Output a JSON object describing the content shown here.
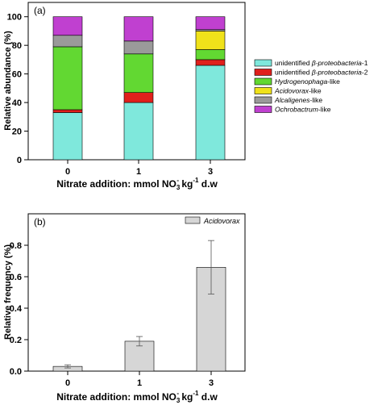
{
  "colors": {
    "cyan": "#7fe8dc",
    "red": "#e0201c",
    "green": "#62d832",
    "yellow": "#f0e21a",
    "gray": "#9a9a9a",
    "magenta": "#c040d0",
    "bar_b": "#d6d6d6"
  },
  "chart_data": [
    {
      "type": "bar",
      "stacked": true,
      "panel_label": "(a)",
      "ylabel": "Relative abundance (%)",
      "xlabel": "Nitrate addition: mmol NO₃⁻ kg⁻¹ d.w",
      "xlabel_parts": {
        "a": "Nitrate addition: mmol NO",
        "sub": "3",
        "sup1": "-",
        "b": " kg",
        "sup2": "-1",
        "c": " d.w"
      },
      "categories": [
        "0",
        "1",
        "3"
      ],
      "ylim": [
        0,
        110
      ],
      "yticks": [
        "0",
        "20",
        "40",
        "60",
        "80",
        "100"
      ],
      "grid": false,
      "legend_position": "right",
      "series": [
        {
          "name": "unidentified β-proteobacteria-1",
          "name_parts": {
            "pre": "unidentified ",
            "it": "β-proteobacteria",
            "post": "-1"
          },
          "color_key": "cyan",
          "values": [
            33,
            40,
            66
          ]
        },
        {
          "name": "unidentified β-proteobacteria-2",
          "name_parts": {
            "pre": "unidentified ",
            "it": "β-proteobacteria",
            "post": "-2"
          },
          "color_key": "red",
          "values": [
            2,
            7,
            4
          ]
        },
        {
          "name": "Hydrogenophaga-like",
          "name_parts": {
            "pre": "",
            "it": "Hydrogenophaga",
            "post": "-like"
          },
          "color_key": "green",
          "values": [
            44,
            27,
            7
          ]
        },
        {
          "name": "Acidovorax-like",
          "name_parts": {
            "pre": "",
            "it": "Acidovorax",
            "post": "-like"
          },
          "color_key": "yellow",
          "values": [
            0,
            0,
            13
          ]
        },
        {
          "name": "Alcaligenes-like",
          "name_parts": {
            "pre": "",
            "it": "Alcaligenes",
            "post": "-like"
          },
          "color_key": "gray",
          "values": [
            8,
            9,
            1
          ]
        },
        {
          "name": "Ochrobactrum-like",
          "name_parts": {
            "pre": "",
            "it": "Ochrobactrum",
            "post": "-like"
          },
          "color_key": "magenta",
          "values": [
            13,
            17,
            9
          ]
        }
      ]
    },
    {
      "type": "bar",
      "panel_label": "(b)",
      "ylabel": "Relative frequency (%)",
      "xlabel": "Nitrate addition: mmol NO₃⁻ kg⁻¹ d.w",
      "xlabel_parts": {
        "a": "Nitrate addition: mmol NO",
        "sub": "3",
        "sup1": "-",
        "b": " kg",
        "sup2": "-1",
        "c": " d.w"
      },
      "categories": [
        "0",
        "1",
        "3"
      ],
      "ylim": [
        0,
        1.0
      ],
      "yticks": [
        "0.0",
        "0.2",
        "0.4",
        "0.6",
        "0.8"
      ],
      "grid": false,
      "legend_position": "top-right",
      "series": [
        {
          "name": "Acidovorax",
          "color_key": "bar_b",
          "values": [
            0.03,
            0.19,
            0.66
          ],
          "errors": [
            0.01,
            0.03,
            0.17
          ]
        }
      ]
    }
  ]
}
